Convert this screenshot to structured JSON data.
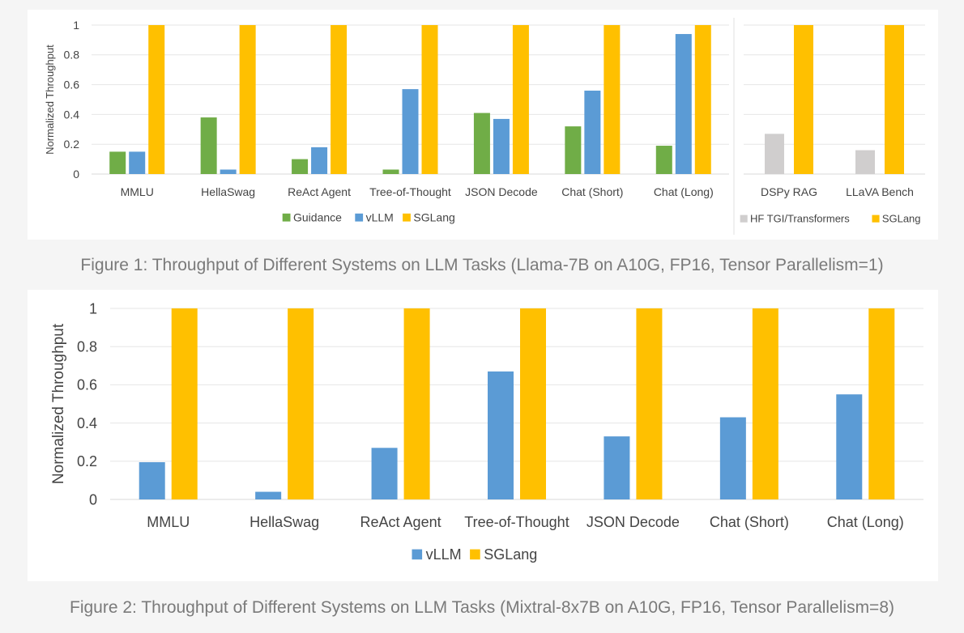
{
  "colors": {
    "Guidance": "#70ad47",
    "vLLM": "#5b9bd5",
    "SGLang": "#ffc000",
    "HF TGI/Transformers": "#d0cece"
  },
  "captions": {
    "figure1": "Figure 1: Throughput of Different Systems on LLM Tasks (Llama-7B on A10G, FP16, Tensor Parallelism=1)",
    "figure2": "Figure 2: Throughput of Different Systems on LLM Tasks (Mixtral-8x7B on A10G, FP16, Tensor Parallelism=8)"
  },
  "chart_data": [
    {
      "type": "bar",
      "title": "",
      "ylabel": "Normalized Throughput",
      "ylim": [
        0,
        1
      ],
      "yticks": [
        "0",
        "0.2",
        "0.4",
        "0.6",
        "0.8",
        "1"
      ],
      "grid": true,
      "legend": "bottom",
      "categories": [
        "MMLU",
        "HellaSwag",
        "ReAct Agent",
        "Tree-of-Thought",
        "JSON Decode",
        "Chat (Short)",
        "Chat (Long)"
      ],
      "series": [
        {
          "name": "Guidance",
          "values": [
            0.15,
            0.38,
            0.1,
            0.03,
            0.41,
            0.32,
            0.19
          ]
        },
        {
          "name": "vLLM",
          "values": [
            0.15,
            0.03,
            0.18,
            0.57,
            0.37,
            0.56,
            0.94
          ]
        },
        {
          "name": "SGLang",
          "values": [
            1,
            1,
            1,
            1,
            1,
            1,
            1
          ]
        }
      ]
    },
    {
      "type": "bar",
      "title": "",
      "ylim": [
        0,
        1
      ],
      "grid": true,
      "legend": "bottom",
      "categories": [
        "DSPy RAG",
        "LLaVA Bench"
      ],
      "series": [
        {
          "name": "HF TGI/Transformers",
          "values": [
            0.27,
            0.16
          ]
        },
        {
          "name": "SGLang",
          "values": [
            1,
            1
          ]
        }
      ]
    },
    {
      "type": "bar",
      "title": "",
      "ylabel": "Normalized Throughput",
      "ylim": [
        0,
        1
      ],
      "yticks": [
        "0",
        "0.2",
        "0.4",
        "0.6",
        "0.8",
        "1"
      ],
      "grid": true,
      "legend": "bottom",
      "categories": [
        "MMLU",
        "HellaSwag",
        "ReAct Agent",
        "Tree-of-Thought",
        "JSON Decode",
        "Chat (Short)",
        "Chat (Long)"
      ],
      "series": [
        {
          "name": "vLLM",
          "values": [
            0.195,
            0.04,
            0.27,
            0.67,
            0.33,
            0.43,
            0.55
          ]
        },
        {
          "name": "SGLang",
          "values": [
            1,
            1,
            1,
            1,
            1,
            1,
            1
          ]
        }
      ]
    }
  ]
}
